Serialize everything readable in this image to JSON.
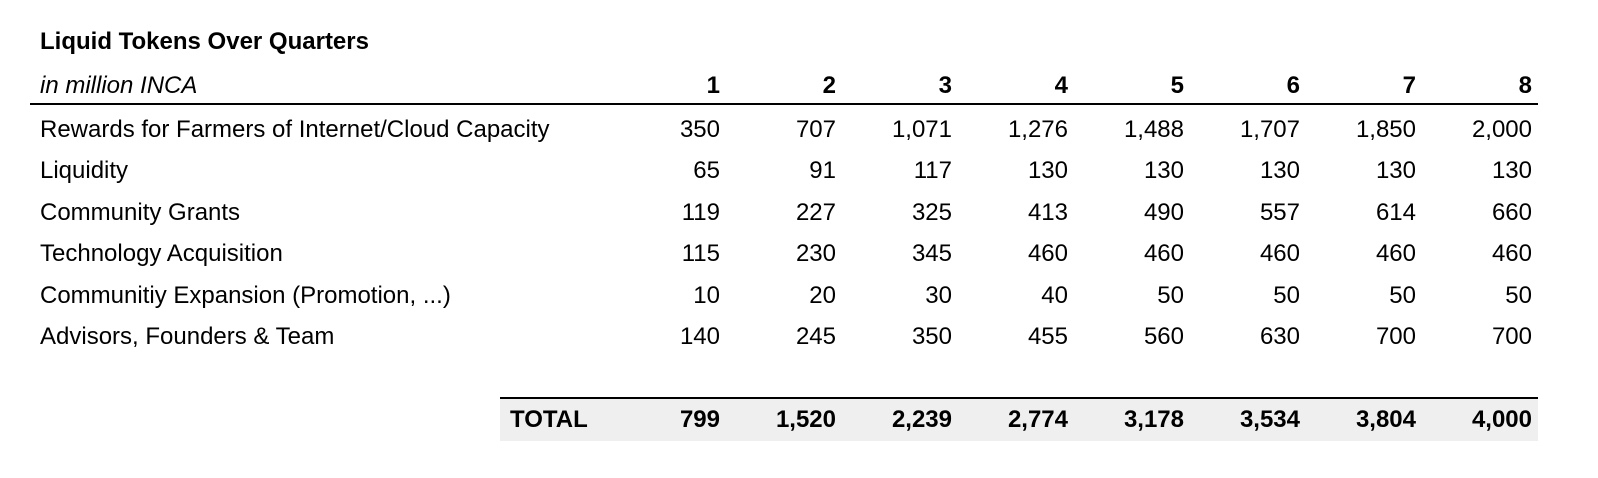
{
  "header": {
    "title": "Liquid Tokens Over Quarters",
    "subtitle": "in million INCA",
    "columns": [
      "1",
      "2",
      "3",
      "4",
      "5",
      "6",
      "7",
      "8"
    ]
  },
  "table": {
    "rows": [
      {
        "label": "Rewards for Farmers of Internet/Cloud Capacity",
        "cells": [
          "350",
          "707",
          "1,071",
          "1,276",
          "1,488",
          "1,707",
          "1,850",
          "2,000"
        ]
      },
      {
        "label": "Liquidity",
        "cells": [
          "65",
          "91",
          "117",
          "130",
          "130",
          "130",
          "130",
          "130"
        ]
      },
      {
        "label": "Community Grants",
        "cells": [
          "119",
          "227",
          "325",
          "413",
          "490",
          "557",
          "614",
          "660"
        ]
      },
      {
        "label": "Technology Acquisition",
        "cells": [
          "115",
          "230",
          "345",
          "460",
          "460",
          "460",
          "460",
          "460"
        ]
      },
      {
        "label": "Communitiy Expansion (Promotion, ...)",
        "cells": [
          "10",
          "20",
          "30",
          "40",
          "50",
          "50",
          "50",
          "50"
        ]
      },
      {
        "label": "Advisors, Founders & Team",
        "cells": [
          "140",
          "245",
          "350",
          "455",
          "560",
          "630",
          "700",
          "700"
        ]
      }
    ]
  },
  "total": {
    "label": "TOTAL",
    "cells": [
      "799",
      "1,520",
      "2,239",
      "2,774",
      "3,178",
      "3,534",
      "3,804",
      "4,000"
    ]
  }
}
